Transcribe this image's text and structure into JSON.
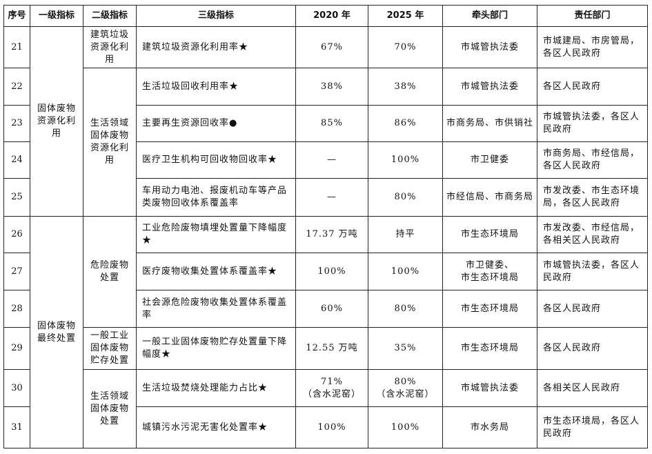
{
  "headers": [
    "序号",
    "一级指标",
    "二级指标",
    "三级指标",
    "2020 年",
    "2025 年",
    "牵头部门",
    "责任部门"
  ],
  "groups": [
    {
      "level1": "固体废物资源化利用",
      "subgroups": [
        {
          "level2": "建筑垃圾资源化利用",
          "rows": [
            {
              "seq": "21",
              "level3": "建筑垃圾资源化利用率★",
              "y2020": "67%",
              "y2025": "70%",
              "lead": "市城管执法委",
              "resp": "市城建局、市房管局，各区人民政府",
              "h": 60
            }
          ]
        },
        {
          "level2": "生活领域固体废物资源化利用",
          "rows": [
            {
              "seq": "22",
              "level3": "生活垃圾回收利用率★",
              "y2020": "38%",
              "y2025": "38%",
              "lead": "市城管执法委",
              "resp": "各区人民政府",
              "h": 54
            },
            {
              "seq": "23",
              "level3": "主要再生资源回收率●",
              "y2020": "85%",
              "y2025": "86%",
              "lead": "市商务局、市供销社",
              "resp": "市城管执法委，各区人民政府",
              "h": 53
            },
            {
              "seq": "24",
              "level3": "医疗卫生机构可回收物回收率★",
              "y2020": "—",
              "y2025": "100%",
              "lead": "市卫健委",
              "resp": "市商务局、市经信局，各区人民政府",
              "h": 53
            },
            {
              "seq": "25",
              "level3": "车用动力电池、报废机动车等产品类废物回收体系覆盖率",
              "y2020": "—",
              "y2025": "80%",
              "lead": "市经信局、市商务局",
              "resp": "市发改委、市生态环境局，各区人民政府",
              "h": 55
            }
          ]
        }
      ]
    },
    {
      "level1": "固体废物最终处置",
      "subgroups": [
        {
          "level2": "危险废物处置",
          "rows": [
            {
              "seq": "26",
              "level3": "工业危险废物填埋处置量下降幅度★",
              "y2020": "17.37 万吨",
              "y2025": "持平",
              "lead": "市生态环境局",
              "resp": "市发改委、市经信局，各相关区人民政府",
              "h": 53
            },
            {
              "seq": "27",
              "level3": "医疗废物收集处置体系覆盖率★",
              "y2020": "100%",
              "y2025": "100%",
              "lead": "市卫健委、\n市生态环境局",
              "resp": "市城管执法委，各区人民政府",
              "h": 54
            },
            {
              "seq": "28",
              "level3": "社会源危险废物收集处置体系覆盖率",
              "y2020": "60%",
              "y2025": "80%",
              "lead": "市生态环境局",
              "resp": "各区人民政府",
              "h": 54
            }
          ]
        },
        {
          "level2": "一般工业固体废物贮存处置",
          "rows": [
            {
              "seq": "29",
              "level3": "一般工业固体废物贮存处置量下降幅度★",
              "y2020": "12.55 万吨",
              "y2025": "35%",
              "lead": "市生态环境局",
              "resp": "各区人民政府",
              "h": 61
            }
          ]
        },
        {
          "level2": "生活领域固体废物处置",
          "rows": [
            {
              "seq": "30",
              "level3": "生活垃圾焚烧处理能力占比★",
              "y2020": "71%\n（含水泥窑）",
              "y2025": "80%\n（含水泥窑）",
              "lead": "市城管执法委",
              "resp": "各相关区人民政府",
              "h": 54
            },
            {
              "seq": "31",
              "level3": "城镇污水污泥无害化处置率★",
              "y2020": "100%",
              "y2025": "100%",
              "lead": "市水务局",
              "resp": "市生态环境局，各区人民政府",
              "h": 60
            }
          ]
        }
      ]
    }
  ]
}
